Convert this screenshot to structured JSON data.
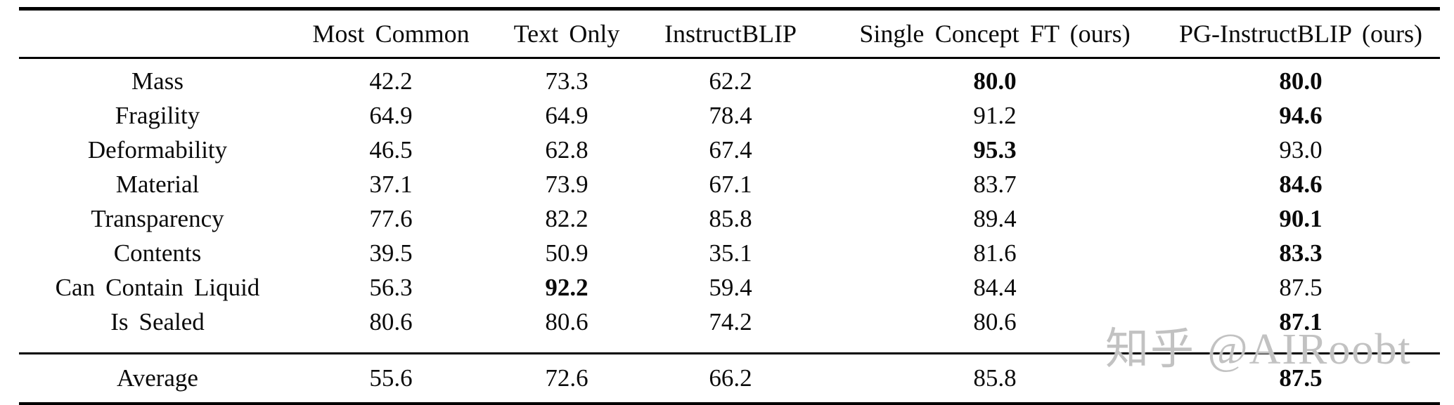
{
  "table": {
    "columns": [
      "",
      "Most Common",
      "Text Only",
      "InstructBLIP",
      "Single Concept FT (ours)",
      "PG-InstructBLIP (ours)"
    ],
    "rows": [
      {
        "label": "Mass",
        "values": [
          "42.2",
          "73.3",
          "62.2",
          "80.0",
          "80.0"
        ],
        "bold": [
          false,
          false,
          false,
          true,
          true
        ]
      },
      {
        "label": "Fragility",
        "values": [
          "64.9",
          "64.9",
          "78.4",
          "91.2",
          "94.6"
        ],
        "bold": [
          false,
          false,
          false,
          false,
          true
        ]
      },
      {
        "label": "Deformability",
        "values": [
          "46.5",
          "62.8",
          "67.4",
          "95.3",
          "93.0"
        ],
        "bold": [
          false,
          false,
          false,
          true,
          false
        ]
      },
      {
        "label": "Material",
        "values": [
          "37.1",
          "73.9",
          "67.1",
          "83.7",
          "84.6"
        ],
        "bold": [
          false,
          false,
          false,
          false,
          true
        ]
      },
      {
        "label": "Transparency",
        "values": [
          "77.6",
          "82.2",
          "85.8",
          "89.4",
          "90.1"
        ],
        "bold": [
          false,
          false,
          false,
          false,
          true
        ]
      },
      {
        "label": "Contents",
        "values": [
          "39.5",
          "50.9",
          "35.1",
          "81.6",
          "83.3"
        ],
        "bold": [
          false,
          false,
          false,
          false,
          true
        ]
      },
      {
        "label": "Can Contain Liquid",
        "values": [
          "56.3",
          "92.2",
          "59.4",
          "84.4",
          "87.5"
        ],
        "bold": [
          false,
          true,
          false,
          false,
          false
        ]
      },
      {
        "label": "Is Sealed",
        "values": [
          "80.6",
          "80.6",
          "74.2",
          "80.6",
          "87.1"
        ],
        "bold": [
          false,
          false,
          false,
          false,
          true
        ]
      }
    ],
    "average": {
      "label": "Average",
      "values": [
        "55.6",
        "72.6",
        "66.2",
        "85.8",
        "87.5"
      ],
      "bold": [
        false,
        false,
        false,
        false,
        true
      ]
    }
  },
  "watermark": {
    "text": "知乎 @AIRoobt",
    "color": "#c2c2c2"
  },
  "colors": {
    "rule": "#000000",
    "text": "#0a0a0a",
    "background": "#ffffff"
  }
}
